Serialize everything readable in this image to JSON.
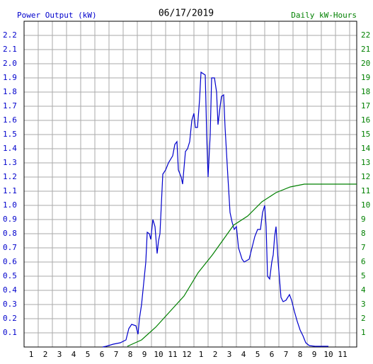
{
  "chart_data": {
    "type": "line",
    "title": "06/17/2019",
    "xlim": [
      0.5,
      24
    ],
    "xticks": [
      1,
      2,
      3,
      4,
      5,
      6,
      7,
      8,
      9,
      10,
      11,
      12,
      {
        "value": 13,
        "label": "1"
      },
      {
        "value": 14,
        "label": "2"
      },
      {
        "value": 15,
        "label": "3"
      },
      {
        "value": 16,
        "label": "4"
      },
      {
        "value": 17,
        "label": "5"
      },
      {
        "value": 18,
        "label": "6"
      },
      {
        "value": 19,
        "label": "7"
      },
      {
        "value": 20,
        "label": "8"
      },
      {
        "value": 21,
        "label": "9"
      },
      {
        "value": 22,
        "label": "10"
      },
      {
        "value": 23,
        "label": "11"
      }
    ],
    "ylim": [
      0,
      2.3
    ],
    "yticks": [
      0.1,
      0.2,
      0.3,
      0.4,
      0.5,
      0.6,
      0.7,
      0.8,
      0.9,
      {
        "value": 1,
        "label": "1.0"
      },
      1.1,
      1.2,
      1.3,
      1.4,
      1.5,
      1.6,
      1.7,
      1.8,
      1.9,
      {
        "value": 2,
        "label": "2.0"
      },
      2.1,
      2.2
    ],
    "y2lim": [
      0,
      23
    ],
    "y2ticks": [
      1,
      2,
      3,
      4,
      5,
      6,
      7,
      8,
      9,
      10,
      11,
      12,
      13,
      14,
      15,
      16,
      17,
      18,
      19,
      20,
      21,
      22
    ],
    "grid": true,
    "series": [
      {
        "name": "Power Output (kW)",
        "color": "#0000cc",
        "x": [
          6.05,
          6.3,
          6.8,
          7.3,
          7.7,
          7.9,
          8.1,
          8.4,
          8.55,
          8.65,
          8.8,
          8.95,
          9.1,
          9.2,
          9.35,
          9.45,
          9.6,
          9.75,
          9.9,
          10,
          10.1,
          10.3,
          10.5,
          10.7,
          11,
          11.15,
          11.3,
          11.4,
          11.6,
          11.7,
          11.9,
          12.05,
          12.2,
          12.35,
          12.5,
          12.6,
          12.75,
          12.9,
          13,
          13.3,
          13.4,
          13.5,
          13.65,
          13.75,
          13.95,
          14.1,
          14.2,
          14.35,
          14.45,
          14.6,
          14.7,
          14.9,
          15.05,
          15.2,
          15.35,
          15.5,
          15.65,
          15.9,
          16.05,
          16.4,
          16.6,
          16.8,
          17,
          17.2,
          17.35,
          17.5,
          17.6,
          17.7,
          17.85,
          18,
          18.1,
          18.2,
          18.3,
          18.45,
          18.65,
          18.8,
          19,
          19.25,
          19.4,
          19.6,
          19.8,
          20,
          20.2,
          20.4,
          20.65,
          21.05,
          22
        ],
        "values": [
          0,
          0.005,
          0.02,
          0.03,
          0.05,
          0.13,
          0.16,
          0.15,
          0.09,
          0.2,
          0.3,
          0.45,
          0.6,
          0.81,
          0.8,
          0.76,
          0.9,
          0.85,
          0.66,
          0.75,
          0.8,
          1.22,
          1.25,
          1.3,
          1.35,
          1.43,
          1.45,
          1.25,
          1.2,
          1.15,
          1.38,
          1.4,
          1.45,
          1.6,
          1.65,
          1.55,
          1.55,
          1.75,
          1.94,
          1.92,
          1.5,
          1.2,
          1.5,
          1.9,
          1.9,
          1.8,
          1.57,
          1.7,
          1.77,
          1.78,
          1.55,
          1.2,
          0.95,
          0.88,
          0.83,
          0.85,
          0.7,
          0.62,
          0.6,
          0.62,
          0.7,
          0.78,
          0.83,
          0.83,
          0.95,
          1,
          0.85,
          0.5,
          0.48,
          0.6,
          0.65,
          0.78,
          0.85,
          0.6,
          0.35,
          0.32,
          0.33,
          0.37,
          0.33,
          0.25,
          0.18,
          0.12,
          0.08,
          0.03,
          0.01,
          0.005,
          0.005
        ]
      },
      {
        "name": "Daily kW-Hours",
        "color": "#008000",
        "axis": "y2",
        "x": [
          7.8,
          8.8,
          9.8,
          10.8,
          11.8,
          12.8,
          13.8,
          14.8,
          15.3,
          16.3,
          17.3,
          18.3,
          19.3,
          20.3,
          24
        ],
        "values": [
          0.05,
          0.5,
          1.4,
          2.5,
          3.6,
          5.25,
          6.5,
          7.9,
          8.6,
          9.25,
          10.25,
          10.9,
          11.3,
          11.5,
          11.5
        ]
      }
    ]
  }
}
